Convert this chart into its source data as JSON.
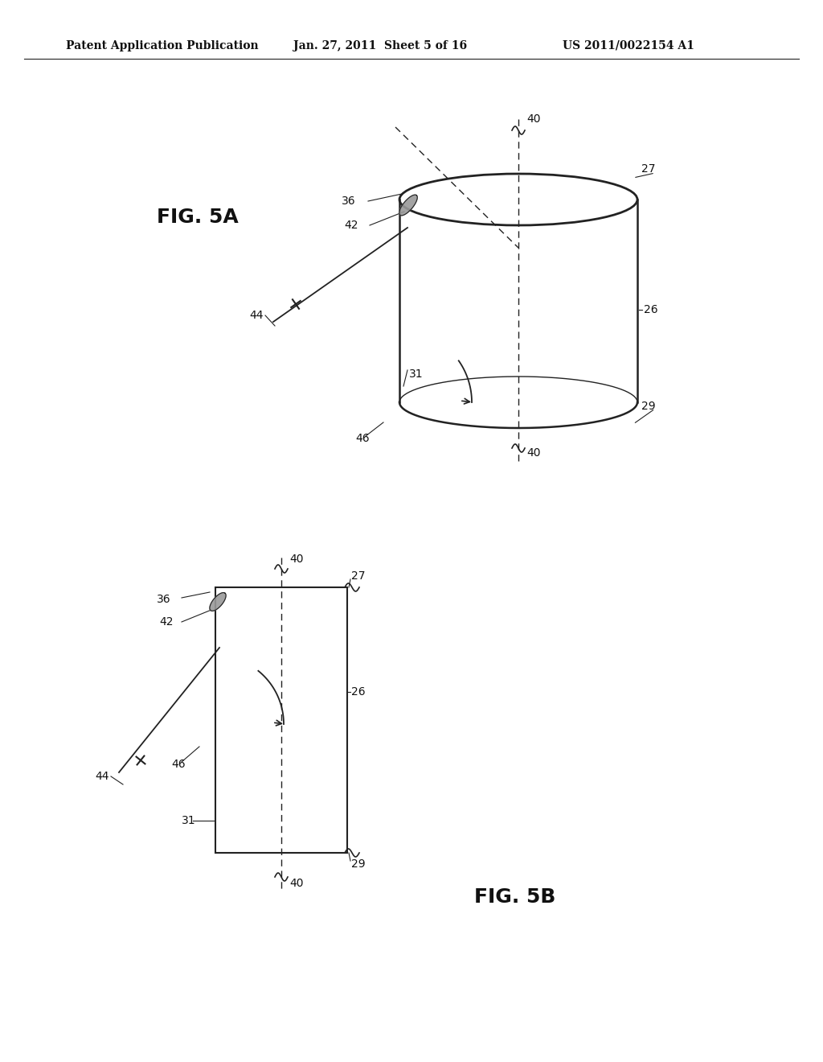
{
  "background_color": "#ffffff",
  "header_text": "Patent Application Publication",
  "header_date": "Jan. 27, 2011  Sheet 5 of 16",
  "header_patent": "US 2011/0022154 A1",
  "fig5a_label": "FIG. 5A",
  "fig5b_label": "FIG. 5B",
  "line_color": "#222222",
  "text_color": "#111111",
  "font_size_header": 10,
  "font_size_label": 18,
  "font_size_ref": 10
}
